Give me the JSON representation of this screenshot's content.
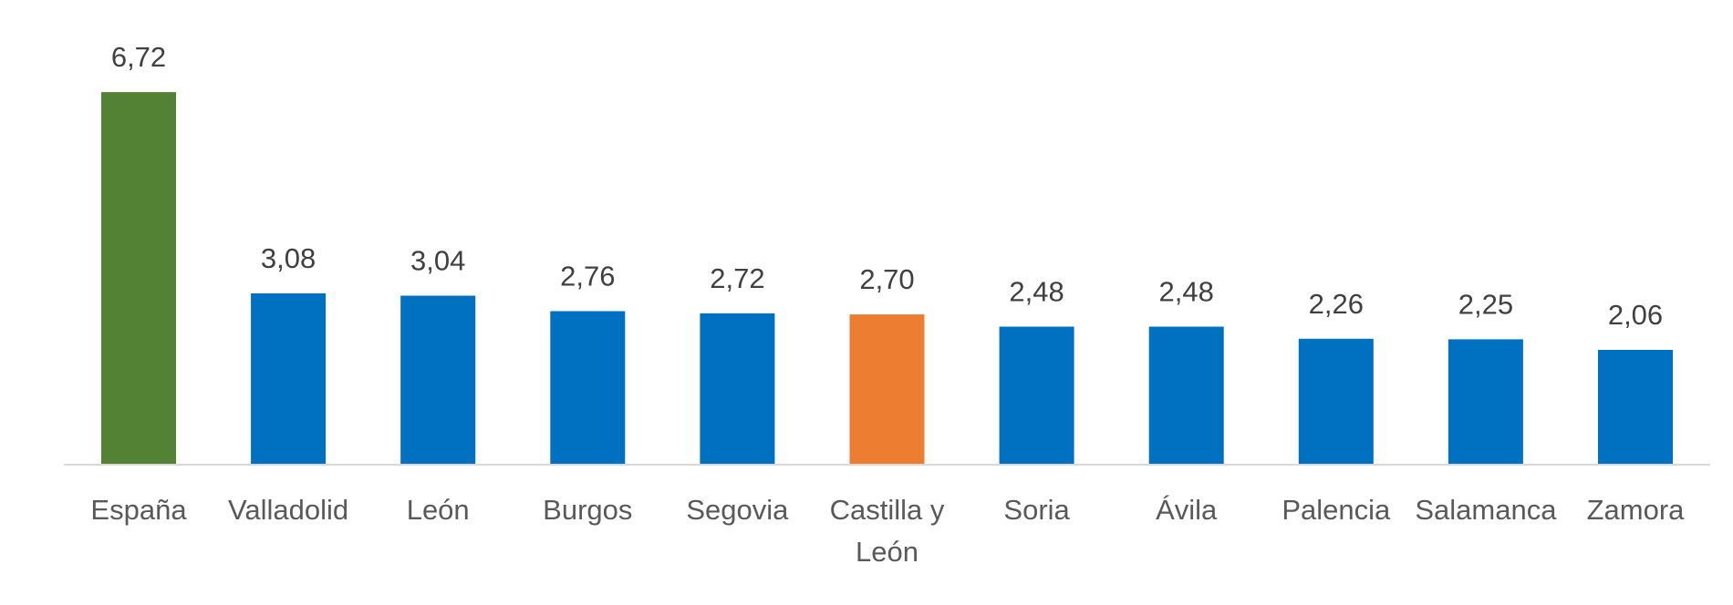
{
  "chart_data": {
    "type": "bar",
    "title": "",
    "xlabel": "",
    "ylabel": "",
    "ylim": [
      0,
      7
    ],
    "grid": false,
    "legend": "none",
    "categories": [
      "España",
      "Valladolid",
      "León",
      "Burgos",
      "Segovia",
      "Castilla y León",
      "Soria",
      "Ávila",
      "Palencia",
      "Salamanca",
      "Zamora"
    ],
    "category_lines": [
      [
        "España"
      ],
      [
        "Valladolid"
      ],
      [
        "León"
      ],
      [
        "Burgos"
      ],
      [
        "Segovia"
      ],
      [
        "Castilla y",
        "León"
      ],
      [
        "Soria"
      ],
      [
        "Ávila"
      ],
      [
        "Palencia"
      ],
      [
        "Salamanca"
      ],
      [
        "Zamora"
      ]
    ],
    "values": [
      6.72,
      3.08,
      3.04,
      2.76,
      2.72,
      2.7,
      2.48,
      2.48,
      2.26,
      2.25,
      2.06
    ],
    "value_labels": [
      "6,72",
      "3,08",
      "3,04",
      "2,76",
      "2,72",
      "2,70",
      "2,48",
      "2,48",
      "2,26",
      "2,25",
      "2,06"
    ],
    "bar_colors": [
      "#548235",
      "#0070C0",
      "#0070C0",
      "#0070C0",
      "#0070C0",
      "#ED7D31",
      "#0070C0",
      "#0070C0",
      "#0070C0",
      "#0070C0",
      "#0070C0"
    ],
    "axis_color": "#D9D9D9"
  }
}
